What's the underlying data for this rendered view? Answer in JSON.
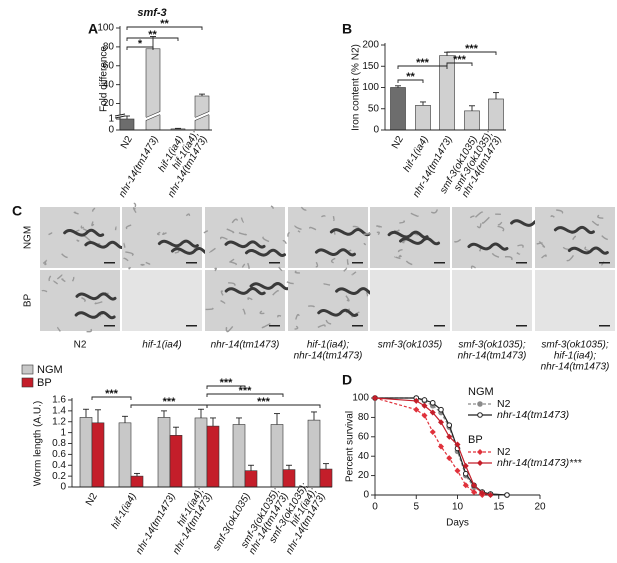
{
  "panel_labels": [
    "A",
    "B",
    "C",
    "D"
  ],
  "image_grid": {
    "rows": [
      "NGM",
      "BP"
    ],
    "columns": [
      [
        "N2"
      ],
      [
        "hif-1(ia4)"
      ],
      [
        "nhr-14(tm1473)"
      ],
      [
        "hif-1(ia4);",
        "nhr-14(tm1473)"
      ],
      [
        "smf-3(ok1035)"
      ],
      [
        "smf-3(ok1035);",
        "nhr-14(tm1473)"
      ],
      [
        "smf-3(ok1035);",
        "hif-1(ia4);",
        "nhr-14(tm1473)"
      ]
    ]
  },
  "chart_data": [
    {
      "type": "bar",
      "title": "smf-3",
      "ylabel": "Fold difference",
      "categories": [
        [
          "N2"
        ],
        [
          "nhr-14(tm1473)"
        ],
        [
          "hif-1(ia4)"
        ],
        [
          "hif-1(ia4);",
          "nhr-14(tm1473)"
        ]
      ],
      "values": [
        1,
        78,
        0.1,
        28
      ],
      "errors": [
        0.1,
        13,
        0.05,
        2
      ],
      "colors": [
        "#6d6d6d",
        "#d0d0d0",
        "#d0d0d0",
        "#d0d0d0"
      ],
      "ylim": [
        0,
        100
      ],
      "ybreak": [
        1,
        10
      ],
      "yticks": [
        0,
        1,
        20,
        40,
        60,
        80,
        100
      ],
      "significance": [
        {
          "label": "*",
          "from": 0,
          "to": 1
        },
        {
          "label": "**",
          "from": 0,
          "to": 2
        },
        {
          "label": "**",
          "from": 0,
          "to": 3
        }
      ]
    },
    {
      "type": "bar",
      "ylabel": "Iron content (% N2)",
      "categories": [
        [
          "N2"
        ],
        [
          "hif-1(ia4)"
        ],
        [
          "nhr-14(tm1473)"
        ],
        [
          "smf-3(ok1035)"
        ],
        [
          "smf-3(ok1035);",
          "nhr-14(tm1473)"
        ]
      ],
      "values": [
        100,
        58,
        175,
        45,
        73
      ],
      "errors": [
        4,
        8,
        8,
        12,
        15
      ],
      "colors": [
        "#6d6d6d",
        "#d0d0d0",
        "#d0d0d0",
        "#d0d0d0",
        "#d0d0d0"
      ],
      "ylim": [
        0,
        200
      ],
      "yticks": [
        0,
        50,
        100,
        150,
        200
      ],
      "significance": [
        {
          "label": "**",
          "from": 0,
          "to": 1
        },
        {
          "label": "***",
          "from": 0,
          "to": 2
        },
        {
          "label": "***",
          "from": 2,
          "to": 3
        },
        {
          "label": "***",
          "from": 2,
          "to": 4
        }
      ]
    },
    {
      "type": "bar",
      "ylabel": "Worm length (A.U.)",
      "categories": [
        [
          "N2"
        ],
        [
          "hif-1(ia4)"
        ],
        [
          "nhr-14(tm1473)"
        ],
        [
          "hif-1(ia4);",
          "nhr-14(tm1473)"
        ],
        [
          "smf-3(ok1035)"
        ],
        [
          "smf-3(ok1035);",
          "nhr-14(tm1473)"
        ],
        [
          "smf-3(ok1035);",
          "hif-1(ia4);",
          "nhr-14(tm1473)"
        ]
      ],
      "series": [
        {
          "name": "NGM",
          "color": "#c8c8c8",
          "values": [
            1.28,
            1.18,
            1.28,
            1.27,
            1.15,
            1.15,
            1.23
          ],
          "errors": [
            0.15,
            0.12,
            0.12,
            0.16,
            0.12,
            0.2,
            0.15
          ]
        },
        {
          "name": "BP",
          "color": "#c41e2a",
          "values": [
            1.18,
            0.2,
            0.95,
            1.12,
            0.3,
            0.32,
            0.33
          ],
          "errors": [
            0.24,
            0.05,
            0.15,
            0.15,
            0.1,
            0.08,
            0.1
          ]
        }
      ],
      "ylim": [
        0,
        1.6
      ],
      "yticks": [
        0,
        0.2,
        0.4,
        0.6,
        0.8,
        1,
        1.2,
        1.4,
        1.6
      ],
      "significance": [
        {
          "label": "***",
          "from": 0,
          "to": 1
        },
        {
          "label": "***",
          "from": 1,
          "to": 3
        },
        {
          "label": "***",
          "from": 3,
          "to": 4
        },
        {
          "label": "***",
          "from": 3,
          "to": 5
        },
        {
          "label": "***",
          "from": 3,
          "to": 6
        }
      ]
    },
    {
      "type": "line",
      "xlabel": "Days",
      "ylabel": "Percent survival",
      "xlim": [
        0,
        20
      ],
      "xticks": [
        0,
        5,
        10,
        15,
        20
      ],
      "ylim": [
        0,
        100
      ],
      "yticks": [
        0,
        20,
        40,
        60,
        80,
        100
      ],
      "legend_groups": [
        "NGM",
        "BP"
      ],
      "series": [
        {
          "name": "N2",
          "group": 0,
          "color": "#8a8a8a",
          "dashed": true,
          "x": [
            0,
            5,
            6,
            7,
            8,
            9,
            10,
            11,
            12,
            13,
            14,
            16
          ],
          "y": [
            100,
            100,
            97,
            92,
            85,
            70,
            45,
            20,
            8,
            3,
            1,
            0
          ]
        },
        {
          "name": "nhr-14(tm1473)",
          "group": 0,
          "color": "#222222",
          "dashed": false,
          "x": [
            0,
            5,
            6,
            7,
            8,
            9,
            10,
            11,
            12,
            13,
            14,
            16
          ],
          "y": [
            100,
            100,
            98,
            95,
            88,
            72,
            48,
            22,
            10,
            3,
            1,
            0
          ]
        },
        {
          "name": "N2",
          "group": 1,
          "color": "#e0313b",
          "dashed": true,
          "x": [
            0,
            5,
            6,
            7,
            8,
            9,
            10,
            11,
            12,
            13
          ],
          "y": [
            100,
            88,
            82,
            65,
            50,
            38,
            25,
            10,
            3,
            0
          ]
        },
        {
          "name": "nhr-14(tm1473)***",
          "group": 1,
          "color": "#c41e2a",
          "dashed": false,
          "x": [
            0,
            5,
            6,
            7,
            8,
            9,
            10,
            11,
            12,
            13,
            14
          ],
          "y": [
            100,
            97,
            92,
            85,
            75,
            60,
            52,
            30,
            10,
            2,
            0
          ]
        }
      ]
    }
  ]
}
